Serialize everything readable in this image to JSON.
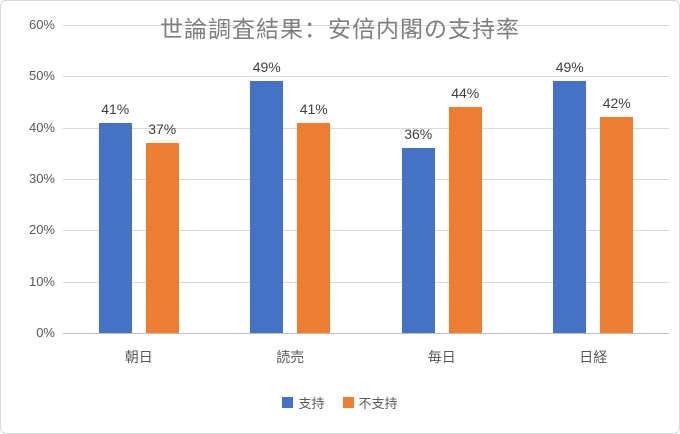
{
  "chart_data": {
    "type": "bar",
    "title": "世論調査結果：安倍内閣の支持率",
    "categories": [
      "朝日",
      "読売",
      "毎日",
      "日経"
    ],
    "series": [
      {
        "name": "支持",
        "color": "#4472C4",
        "values": [
          41,
          49,
          36,
          49
        ]
      },
      {
        "name": "不支持",
        "color": "#ED7D31",
        "values": [
          37,
          41,
          44,
          42
        ]
      }
    ],
    "ylim": [
      0,
      60
    ],
    "ytick_step": 10,
    "ytick_labels": [
      "0%",
      "10%",
      "20%",
      "30%",
      "40%",
      "50%",
      "60%"
    ],
    "data_label_suffix": "%",
    "grid": true,
    "legend_position": "bottom"
  },
  "colors": {
    "gridline": "#d9d9d9",
    "axis_line": "#bfbfbf",
    "tick_text": "#595959",
    "title_text": "#7f7f7f",
    "value_text": "#404040"
  }
}
